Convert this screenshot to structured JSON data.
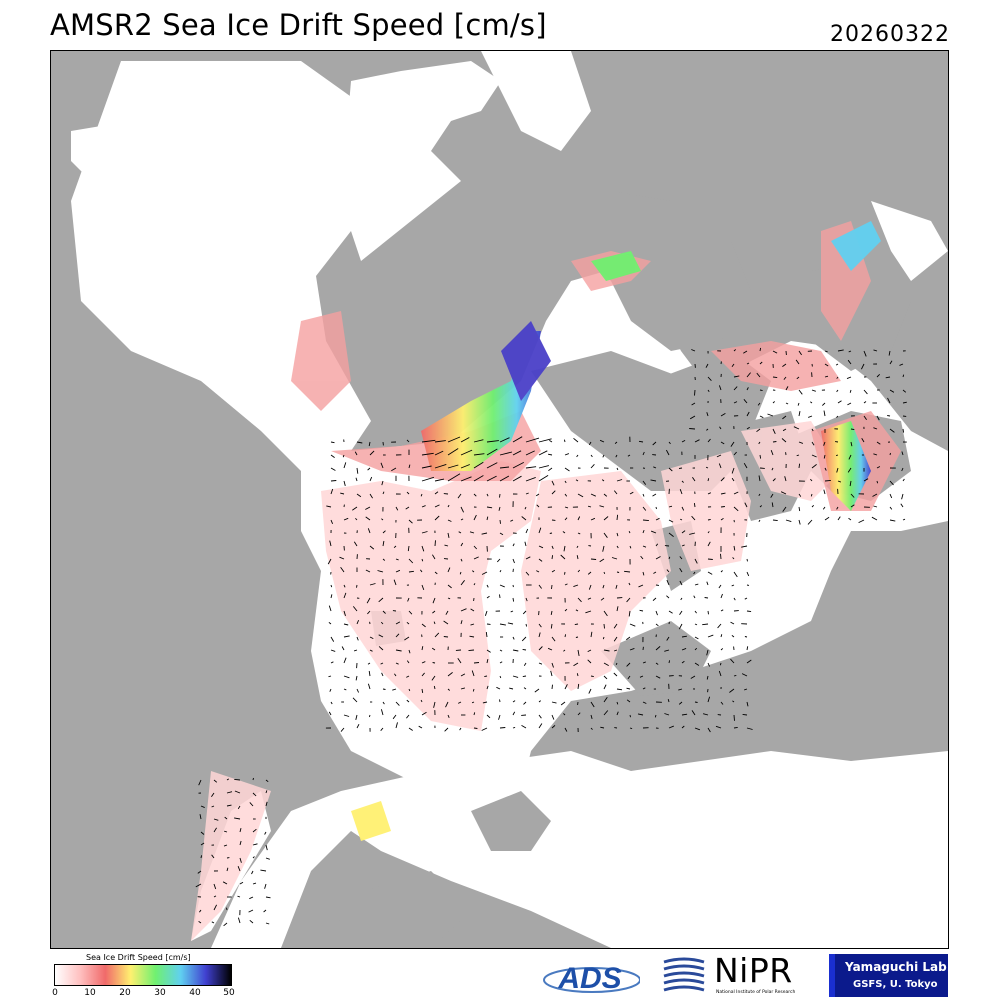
{
  "title": "AMSR2 Sea Ice Drift Speed [cm/s]",
  "date": "20260322",
  "colorbar": {
    "title": "Sea Ice Drift Speed [cm/s]",
    "ticks": [
      "0",
      "10",
      "20",
      "30",
      "40",
      "50"
    ],
    "stops": [
      "#ffffff",
      "#ffc0c0",
      "#f06a6a",
      "#fff070",
      "#70f070",
      "#60d0f0",
      "#4040d0",
      "#000000"
    ]
  },
  "map": {
    "land_color": "#a7a7a7",
    "ice_color": "#ffffff",
    "speed_unit": "cm/s"
  },
  "logos": {
    "ads": "ADS",
    "nipr": "NiPR",
    "nipr_sub": "National Institute of Polar Research",
    "lab_line1": "Yamaguchi Lab.",
    "lab_line2": "GSFS, U. Tokyo"
  }
}
